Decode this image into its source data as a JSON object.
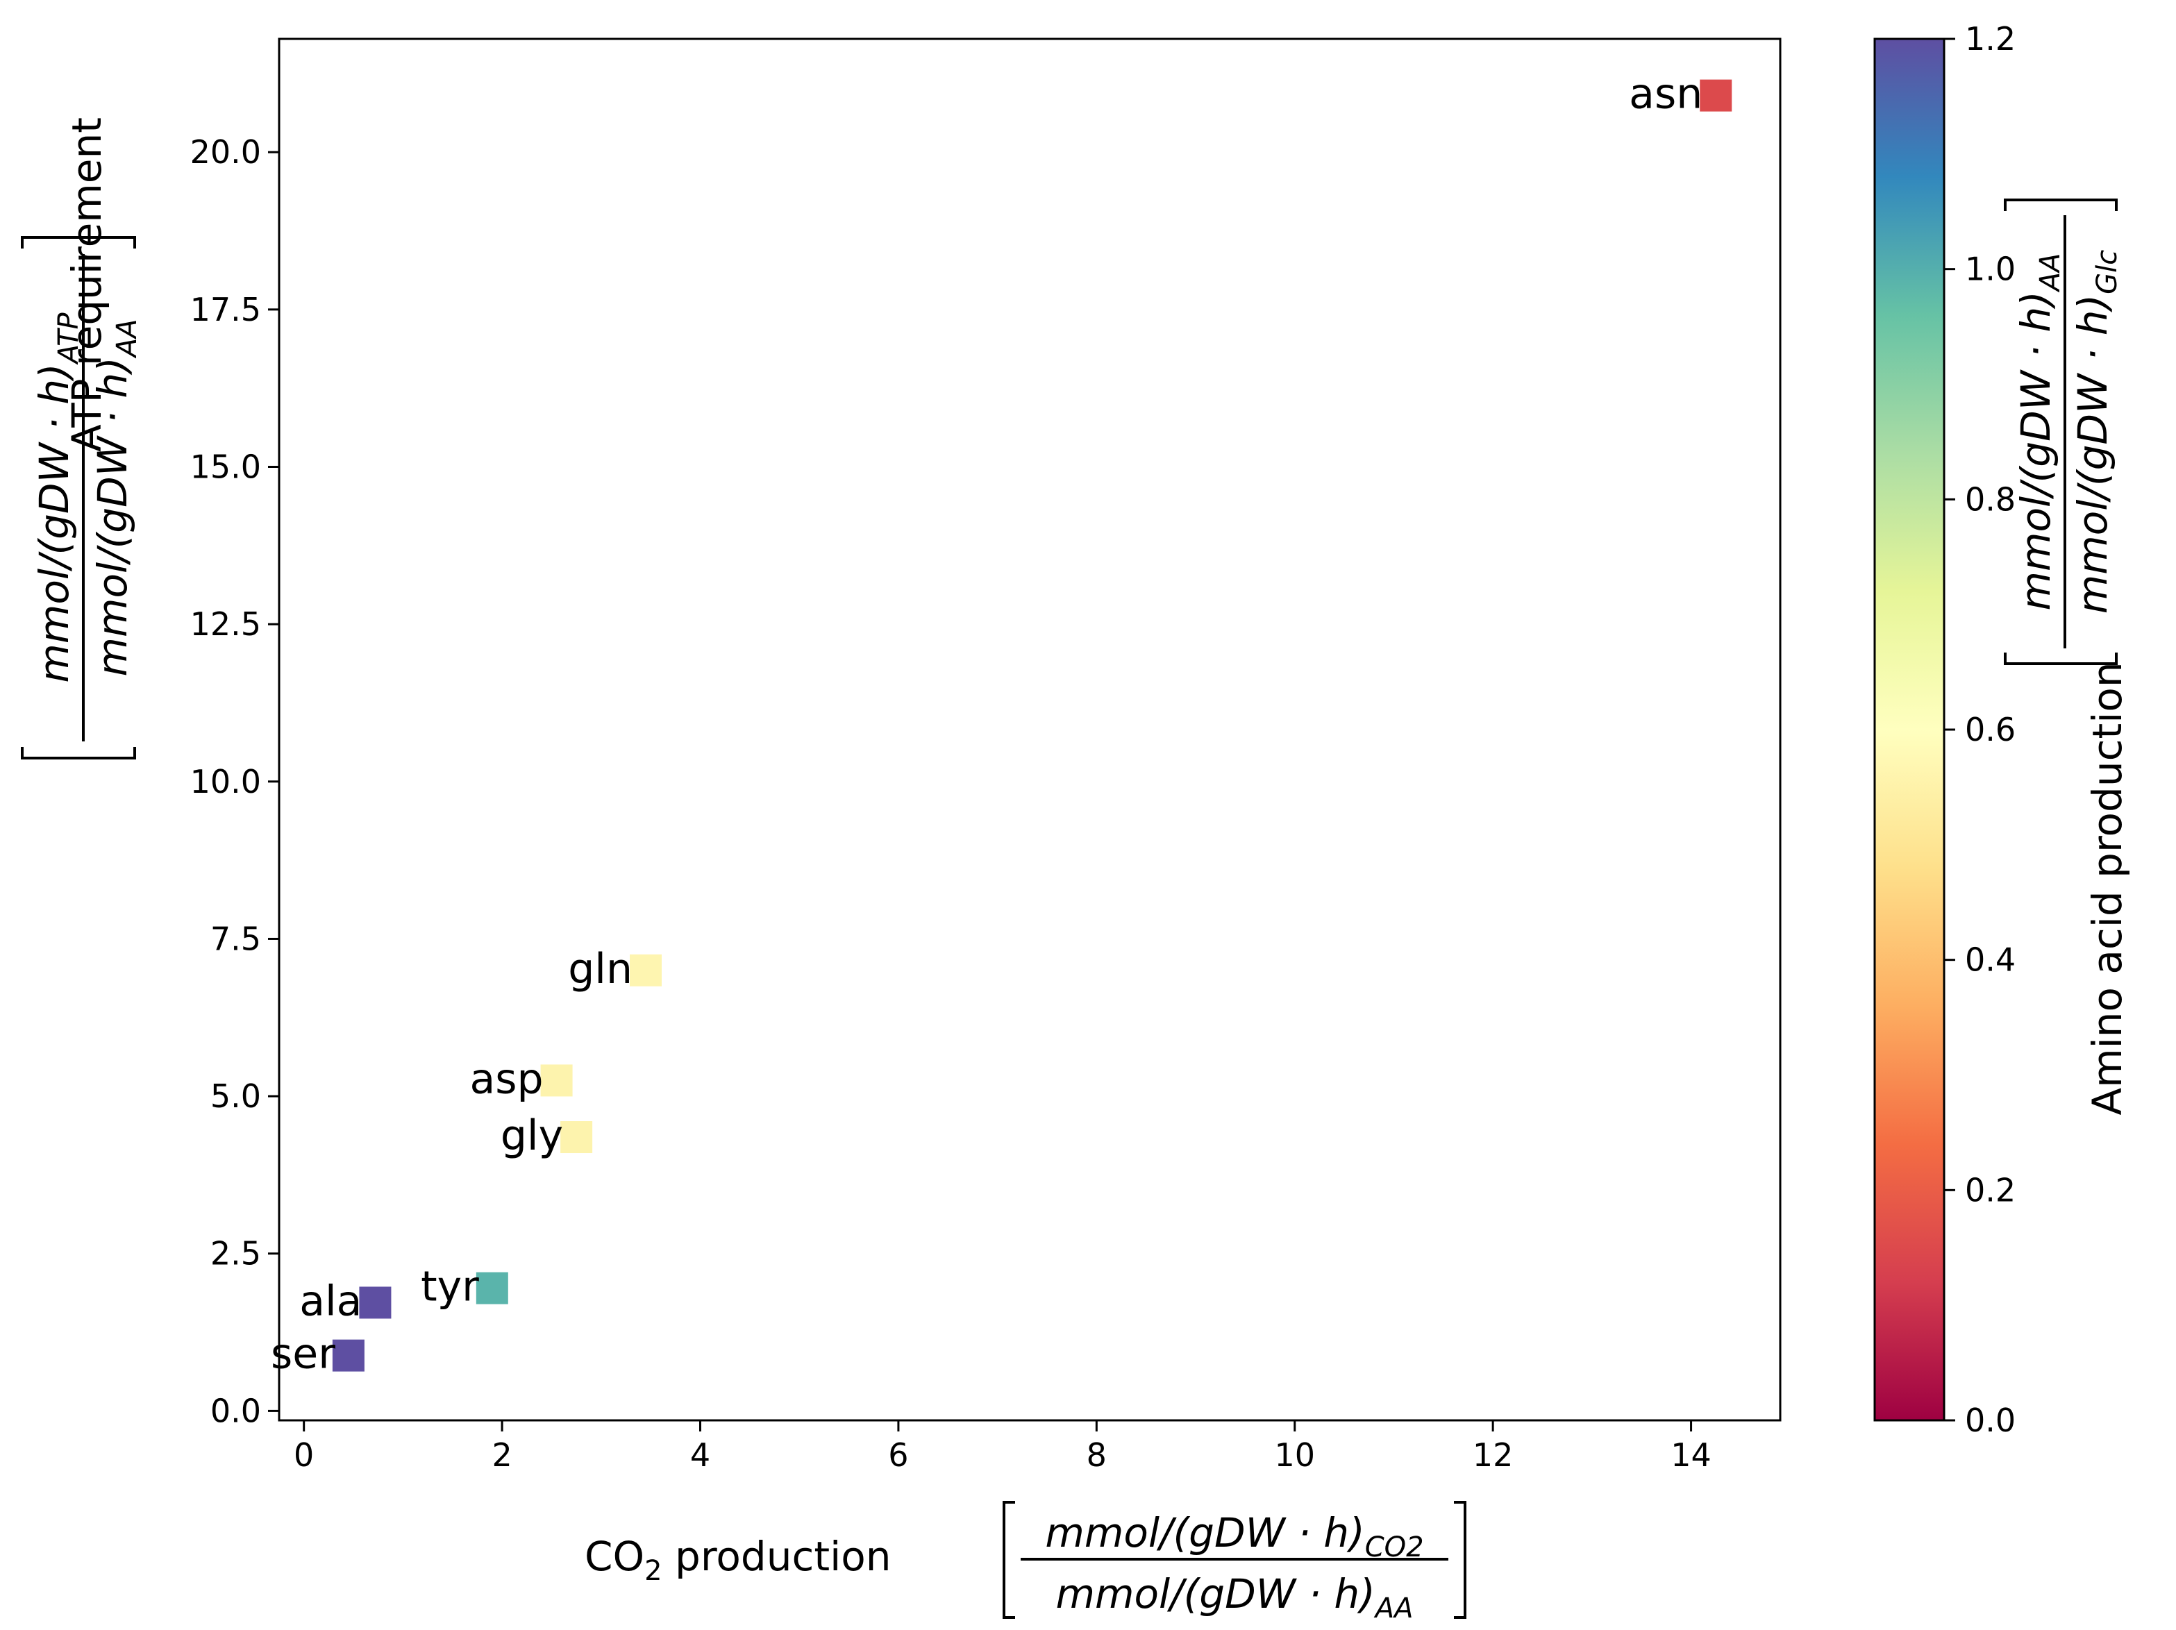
{
  "chart_data": {
    "type": "scatter",
    "title": "",
    "x_axis": {
      "label_prefix": "CO",
      "label_subscript": "2",
      "label_suffix": " production",
      "unit_numerator": "mmol/(gDW · h)",
      "unit_numerator_sub": "CO2",
      "unit_denominator": "mmol/(gDW · h)",
      "unit_denominator_sub": "AA",
      "range": [
        -0.25,
        14.9
      ],
      "ticks": [
        0,
        2,
        4,
        6,
        8,
        10,
        12,
        14
      ],
      "tick_labels": [
        "0",
        "2",
        "4",
        "6",
        "8",
        "10",
        "12",
        "14"
      ]
    },
    "y_axis": {
      "label": "ATP requirement",
      "unit_numerator": "mmol/(gDW · h)",
      "unit_numerator_sub": "ATP",
      "unit_denominator": "mmol/(gDW · h)",
      "unit_denominator_sub": "AA",
      "range": [
        -0.15,
        21.8
      ],
      "ticks": [
        0.0,
        2.5,
        5.0,
        7.5,
        10.0,
        12.5,
        15.0,
        17.5,
        20.0
      ],
      "tick_labels": [
        "0.0",
        "2.5",
        "5.0",
        "7.5",
        "10.0",
        "12.5",
        "15.0",
        "17.5",
        "20.0"
      ]
    },
    "colorbar": {
      "label": "Amino acid production",
      "unit_numerator": "mmol/(gDW · h)",
      "unit_numerator_sub": "AA",
      "unit_denominator": "mmol/(gDW · h)",
      "unit_denominator_sub": "Glc",
      "colormap": "Spectral",
      "range": [
        0.0,
        1.2
      ],
      "ticks": [
        0.0,
        0.2,
        0.4,
        0.6,
        0.8,
        1.0,
        1.2
      ],
      "tick_labels": [
        "0.0",
        "0.2",
        "0.4",
        "0.6",
        "0.8",
        "1.0",
        "1.2"
      ],
      "stops": [
        "#9e0142",
        "#d53e4f",
        "#f46d43",
        "#fdae61",
        "#fee08b",
        "#ffffbf",
        "#e6f598",
        "#abdda4",
        "#66c2a5",
        "#3288bd",
        "#5e4fa2"
      ]
    },
    "marker": "square",
    "points": [
      {
        "name": "asn",
        "x": 14.25,
        "y": 20.9,
        "color_value": 0.1,
        "color": "#dc4a4c"
      },
      {
        "name": "gln",
        "x": 3.45,
        "y": 7.0,
        "color_value": 0.58,
        "color": "#fef5b0"
      },
      {
        "name": "asp",
        "x": 2.55,
        "y": 5.25,
        "color_value": 0.57,
        "color": "#fdf3ad"
      },
      {
        "name": "gly",
        "x": 2.75,
        "y": 4.35,
        "color_value": 0.57,
        "color": "#fdf3ad"
      },
      {
        "name": "tyr",
        "x": 1.9,
        "y": 1.95,
        "color_value": 1.05,
        "color": "#5ab4ab"
      },
      {
        "name": "ala",
        "x": 0.72,
        "y": 1.72,
        "color_value": 1.2,
        "color": "#5e4fa2"
      },
      {
        "name": "ser",
        "x": 0.45,
        "y": 0.88,
        "color_value": 1.2,
        "color": "#5e4fa2"
      }
    ]
  }
}
